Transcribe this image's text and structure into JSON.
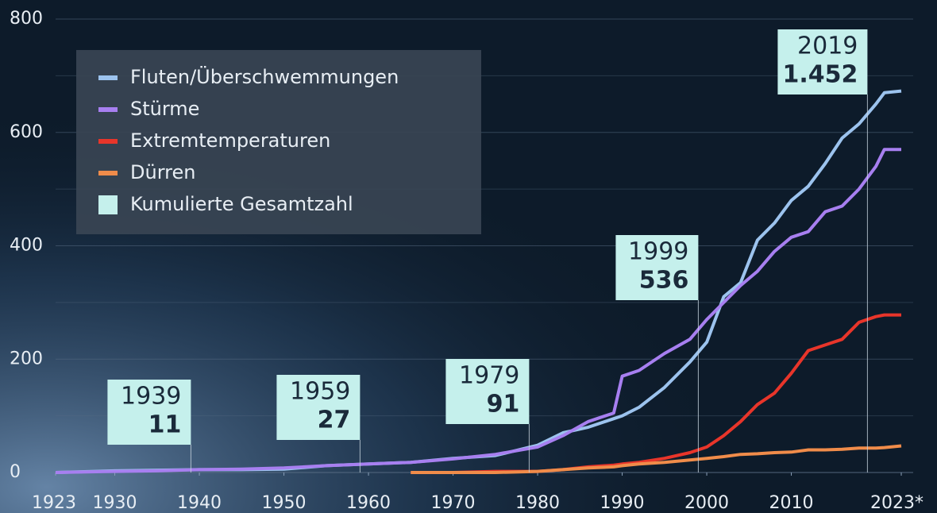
{
  "chart_data": {
    "type": "line",
    "x": [
      1923,
      1930,
      1935,
      1940,
      1945,
      1950,
      1955,
      1960,
      1965,
      1970,
      1975,
      1980,
      1983,
      1986,
      1989,
      1990,
      1992,
      1995,
      1998,
      2000,
      2002,
      2004,
      2006,
      2008,
      2010,
      2012,
      2014,
      2016,
      2018,
      2020,
      2021,
      2023
    ],
    "series": [
      {
        "name": "Fluten/Überschwemmungen",
        "color": "#9cc3ee",
        "values": [
          0,
          3,
          4,
          5,
          5,
          6,
          12,
          15,
          18,
          25,
          30,
          48,
          70,
          80,
          95,
          100,
          115,
          150,
          195,
          230,
          310,
          335,
          410,
          440,
          480,
          505,
          545,
          590,
          615,
          650,
          670,
          673
        ]
      },
      {
        "name": "Stürme",
        "color": "#a77ff0",
        "values": [
          0,
          2,
          3,
          5,
          6,
          8,
          12,
          15,
          18,
          24,
          32,
          45,
          65,
          90,
          105,
          170,
          180,
          210,
          235,
          270,
          300,
          330,
          355,
          390,
          415,
          425,
          460,
          470,
          500,
          540,
          570,
          570
        ]
      },
      {
        "name": "Extremtemperaturen",
        "color": "#e8352a",
        "values": [
          null,
          null,
          null,
          null,
          null,
          null,
          null,
          null,
          0,
          0,
          2,
          2,
          5,
          10,
          13,
          15,
          18,
          25,
          35,
          45,
          65,
          90,
          120,
          140,
          175,
          215,
          225,
          235,
          265,
          275,
          278,
          278
        ]
      },
      {
        "name": "Dürren",
        "color": "#f08c4a",
        "values": [
          null,
          null,
          null,
          null,
          null,
          null,
          null,
          null,
          0,
          0,
          0,
          2,
          5,
          8,
          10,
          12,
          15,
          18,
          22,
          25,
          28,
          32,
          33,
          35,
          36,
          40,
          40,
          41,
          43,
          43,
          44,
          47
        ]
      }
    ],
    "annotation_legend": "Kumulierte Gesamtzahl",
    "annotation_color": "#c5f0ec",
    "annotations": [
      {
        "x": 1939,
        "total": 11
      },
      {
        "x": 1959,
        "total": 27
      },
      {
        "x": 1979,
        "total": 91
      },
      {
        "x": 1999,
        "total": 536
      },
      {
        "x": 2019,
        "total": 1452,
        "total_label": "1.452"
      }
    ],
    "xlim": [
      1923,
      2023
    ],
    "xticks": [
      1923,
      1930,
      1940,
      1950,
      1960,
      1970,
      1980,
      1990,
      2000,
      2010,
      {
        "value": 2023,
        "label": "2023*"
      }
    ],
    "ylim": [
      0,
      800
    ],
    "yticks": [
      0,
      200,
      400,
      600,
      800
    ],
    "minor_yticks": [
      100,
      300,
      500,
      700
    ],
    "grid": true
  }
}
